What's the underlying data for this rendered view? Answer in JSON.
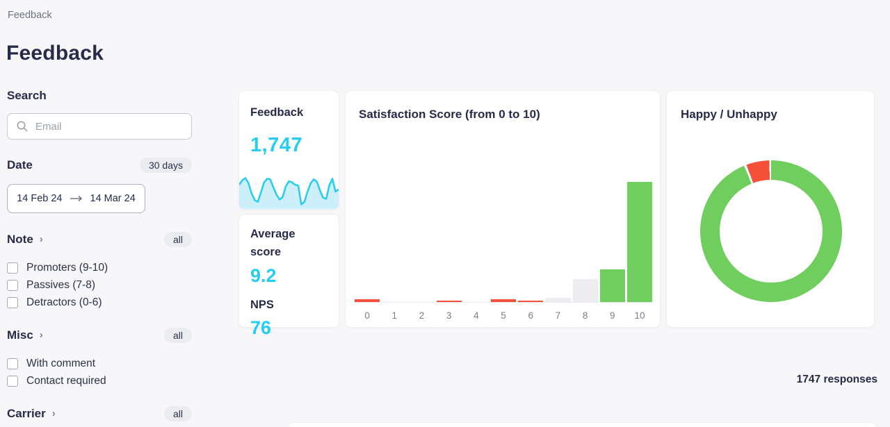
{
  "page": {
    "breadcrumb": "Feedback",
    "title": "Feedback"
  },
  "sidebar": {
    "search": {
      "label": "Search",
      "placeholder": "Email"
    },
    "date": {
      "label": "Date",
      "badge": "30 days",
      "from": "14 Feb 24",
      "to": "14 Mar 24"
    },
    "note": {
      "label": "Note",
      "badge": "all",
      "options": [
        {
          "label": "Promoters (9-10)",
          "checked": false
        },
        {
          "label": "Passives (7-8)",
          "checked": false
        },
        {
          "label": "Detractors (0-6)",
          "checked": false
        }
      ]
    },
    "misc": {
      "label": "Misc",
      "badge": "all",
      "options": [
        {
          "label": "With comment",
          "checked": false
        },
        {
          "label": "Contact required",
          "checked": false
        }
      ]
    },
    "carrier": {
      "label": "Carrier",
      "badge": "all"
    }
  },
  "cards": {
    "feedback": {
      "title": "Feedback",
      "value": "1,747"
    },
    "average": {
      "title": "Average score",
      "value": "9.2",
      "nps_label": "NPS",
      "nps_value": "76"
    },
    "satisfaction": {
      "title": "Satisfaction Score (from 0 to 10)"
    },
    "happy": {
      "title": "Happy / Unhappy"
    }
  },
  "footer": {
    "responses": "1747 responses"
  },
  "colors": {
    "accent_cyan": "#24cdf2",
    "promoter_green": "#6fce5e",
    "detractor_red": "#f4503a",
    "passive_gray": "#ececf1",
    "dark_navy": "#262b49"
  },
  "chart_data": [
    {
      "type": "area",
      "title": "Feedback 30-day sparkline",
      "values": [
        70,
        85,
        92,
        75,
        42,
        20,
        14,
        45,
        78,
        90,
        88,
        62,
        38,
        22,
        30,
        65,
        82,
        78,
        70,
        68,
        6,
        15,
        48,
        75,
        88,
        80,
        52,
        28,
        24,
        68,
        90,
        48,
        55
      ],
      "line_color": "#29cdf0",
      "fill_color": "#cdeffa"
    },
    {
      "type": "bar",
      "title": "Satisfaction Score (from 0 to 10)",
      "categories": [
        "0",
        "1",
        "2",
        "3",
        "4",
        "5",
        "6",
        "7",
        "8",
        "9",
        "10"
      ],
      "values": [
        26,
        2,
        2,
        13,
        2,
        26,
        13,
        39,
        210,
        300,
        1114
      ],
      "groups": [
        "detractor",
        "detractor",
        "detractor",
        "detractor",
        "detractor",
        "detractor",
        "detractor",
        "passive",
        "passive",
        "promoter",
        "promoter"
      ],
      "group_colors": {
        "detractor": "#f4503a",
        "passive": "#ececf1",
        "promoter": "#6fce5e"
      },
      "xlabel": "",
      "ylabel": "",
      "ylim": [
        0,
        1150
      ],
      "grid": false,
      "legend": false
    },
    {
      "type": "pie",
      "title": "Happy / Unhappy",
      "labels": [
        "Happy",
        "Unhappy"
      ],
      "values": [
        94.2,
        5.8
      ],
      "colors": [
        "#6fce5e",
        "#f4503a"
      ],
      "donut": true,
      "legend": false
    }
  ]
}
